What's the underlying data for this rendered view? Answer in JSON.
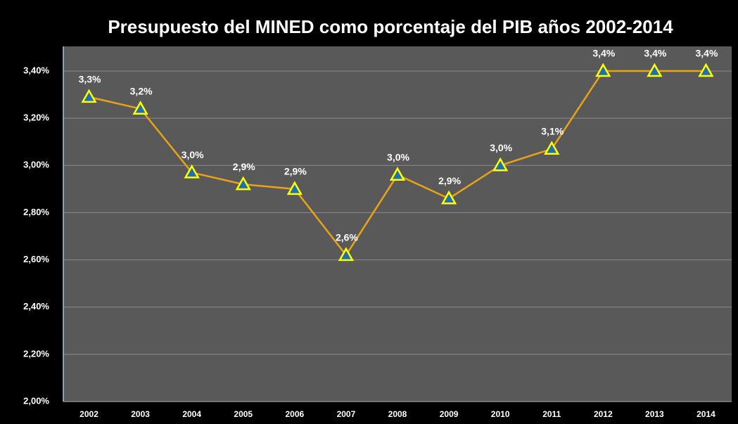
{
  "chart_data": {
    "type": "line",
    "title": "Presupuesto del MINED como porcentaje del PIB años 2002-2014",
    "categories": [
      "2002",
      "2003",
      "2004",
      "2005",
      "2006",
      "2007",
      "2008",
      "2009",
      "2010",
      "2011",
      "2012",
      "2013",
      "2014"
    ],
    "values": [
      3.29,
      3.24,
      2.97,
      2.92,
      2.9,
      2.62,
      2.96,
      2.86,
      3.0,
      3.07,
      3.4,
      3.4,
      3.4
    ],
    "value_labels": [
      "3,3%",
      "3,2%",
      "3,0%",
      "2,9%",
      "2,9%",
      "2,6%",
      "3,0%",
      "2,9%",
      "3,0%",
      "3,1%",
      "3,4%",
      "3,4%",
      "3,4%"
    ],
    "color": "#e8a317",
    "marker_fill": "#1f6fb5",
    "marker_edge": "#ffff00",
    "ylim": [
      2.0,
      3.4
    ],
    "yticks": [
      {
        "value": 2.0,
        "label": "2,00%"
      },
      {
        "value": 2.2,
        "label": "2,20%"
      },
      {
        "value": 2.4,
        "label": "2,40%"
      },
      {
        "value": 2.6,
        "label": "2,60%"
      },
      {
        "value": 2.8,
        "label": "2,80%"
      },
      {
        "value": 3.0,
        "label": "3,00%"
      },
      {
        "value": 3.2,
        "label": "3,20%"
      },
      {
        "value": 3.4,
        "label": "3,40%"
      }
    ],
    "grid": true
  }
}
